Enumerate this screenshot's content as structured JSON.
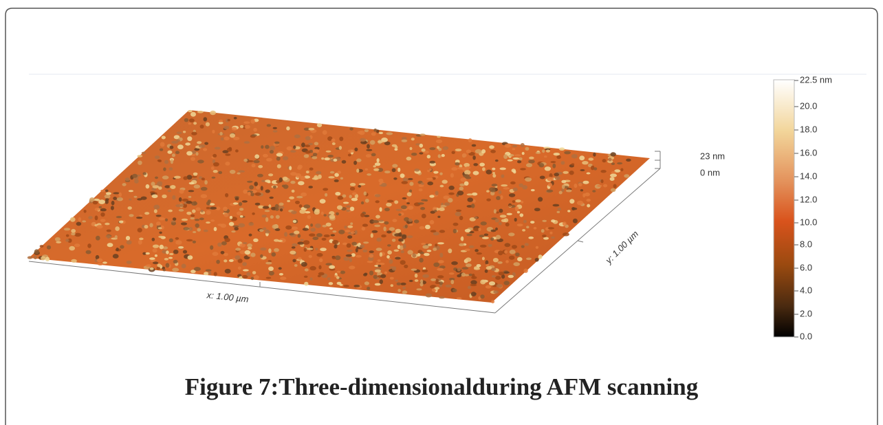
{
  "figure": {
    "x_axis_label": "x: 1.00 µm",
    "y_axis_label": "y: 1.00 µm",
    "z_scale_labels": [
      "23 nm",
      "0 nm"
    ],
    "colorbar_labels": [
      "22.5 nm",
      "20.0",
      "18.0",
      "16.0",
      "14.0",
      "12.0",
      "10.0",
      "8.0",
      "6.0",
      "4.0",
      "2.0",
      "0.0"
    ],
    "caption": "Figure 7:Three-dimensionalduring AFM scanning"
  }
}
